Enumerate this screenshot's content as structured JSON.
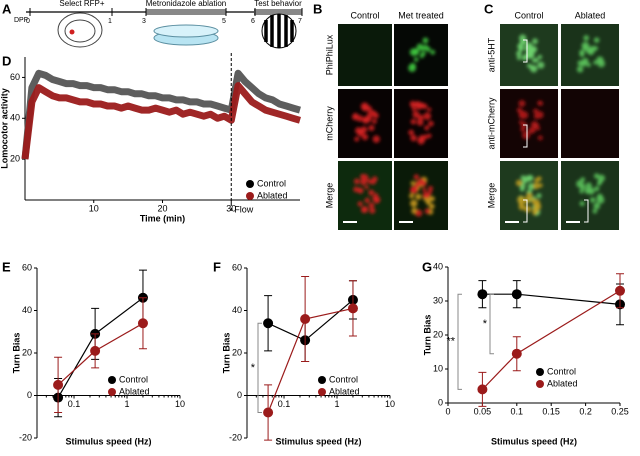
{
  "panel_labels": [
    "A",
    "B",
    "C",
    "D",
    "E",
    "F",
    "G"
  ],
  "panel_a": {
    "dpf_label": "DPF",
    "days": [
      "0",
      "1",
      "3",
      "5",
      "6",
      "7"
    ],
    "steps": [
      "Select  RFP+",
      "Metronidazole ablation",
      "Test behavior"
    ]
  },
  "panel_b": {
    "columns": [
      "Control",
      "Met treated"
    ],
    "rows": [
      "PhiPhiLux",
      "mCherry",
      "Merge"
    ]
  },
  "panel_c": {
    "columns": [
      "Control",
      "Ablated"
    ],
    "rows": [
      "anti-5HT",
      "anti-mCherry",
      "Merge"
    ]
  },
  "chart_data": [
    {
      "type": "line",
      "xlabel": "Time (min)",
      "ylabel": "Lomocotor activity",
      "x": [
        0,
        1,
        2,
        3,
        4,
        5,
        6,
        7,
        8,
        9,
        10,
        11,
        12,
        13,
        14,
        15,
        16,
        17,
        18,
        19,
        20,
        21,
        22,
        23,
        24,
        25,
        26,
        27,
        28,
        29,
        30,
        31,
        32,
        33,
        34,
        35,
        36,
        37,
        38,
        39,
        40
      ],
      "xlim": [
        0,
        40
      ],
      "ylim": [
        0,
        70
      ],
      "xticks": [
        10,
        20,
        30
      ],
      "yticks": [
        20,
        40,
        60
      ],
      "series": [
        {
          "name": "Control",
          "color": "#555555",
          "marker_color": "#000000",
          "values": [
            20,
            55,
            62,
            61,
            59,
            58,
            57,
            57,
            56,
            56,
            55,
            55,
            54,
            54,
            53,
            53,
            52,
            52,
            51,
            51,
            50,
            50,
            49,
            49,
            48,
            48,
            47,
            47,
            46,
            45,
            44,
            62,
            58,
            55,
            52,
            50,
            49,
            47,
            46,
            45,
            44
          ]
        },
        {
          "name": "Ablated",
          "color": "#9b1b1b",
          "marker_color": "#9b1b1b",
          "values": [
            20,
            48,
            55,
            53,
            51,
            50,
            50,
            49,
            48,
            48,
            47,
            47,
            46,
            46,
            45,
            46,
            45,
            44,
            44,
            45,
            44,
            43,
            44,
            42,
            43,
            42,
            41,
            42,
            40,
            41,
            39,
            56,
            52,
            48,
            46,
            44,
            43,
            42,
            41,
            40,
            39
          ]
        }
      ],
      "annotations": [
        {
          "text": "Flow",
          "x": 30
        }
      ],
      "legend": "lower right"
    },
    {
      "type": "errorbar",
      "xlabel": "Stimulus speed (Hz)",
      "ylabel": "Turn Bias",
      "xscale": "log",
      "x": [
        0.05,
        0.25,
        2
      ],
      "xlim": [
        0.02,
        10
      ],
      "ylim": [
        -20,
        60
      ],
      "xticks": [
        0.1,
        1,
        10
      ],
      "yticks": [
        -20,
        0,
        20,
        40,
        60
      ],
      "series": [
        {
          "name": "Control",
          "color": "#000000",
          "values": [
            -1,
            29,
            46
          ],
          "errors": [
            9,
            12,
            13
          ]
        },
        {
          "name": "Ablated",
          "color": "#9b1b1b",
          "values": [
            5,
            21,
            34
          ],
          "errors": [
            13,
            8,
            12
          ]
        }
      ],
      "annotations": [],
      "legend": "lower right"
    },
    {
      "type": "errorbar",
      "xlabel": "Stimulus speed (Hz)",
      "ylabel": "Turn Bias",
      "xscale": "log",
      "x": [
        0.05,
        0.25,
        2
      ],
      "xlim": [
        0.02,
        10
      ],
      "ylim": [
        -20,
        60
      ],
      "xticks": [
        0.1,
        1,
        10
      ],
      "yticks": [
        -20,
        0,
        20,
        40,
        60
      ],
      "series": [
        {
          "name": "Control",
          "color": "#000000",
          "values": [
            34,
            26,
            45
          ],
          "errors": [
            13,
            10,
            9
          ]
        },
        {
          "name": "Ablated",
          "color": "#9b1b1b",
          "values": [
            -8,
            36,
            41
          ],
          "errors": [
            13,
            20,
            13
          ]
        }
      ],
      "annotations": [
        {
          "text": "*"
        }
      ],
      "legend": "lower right"
    },
    {
      "type": "errorbar",
      "xlabel": "Stimulus speed (Hz)",
      "ylabel": "Turn Bias",
      "xscale": "linear",
      "x": [
        0.05,
        0.1,
        0.25
      ],
      "xlim": [
        0,
        0.25
      ],
      "ylim": [
        0,
        40
      ],
      "xticks": [
        0,
        0.05,
        0.1,
        0.15,
        0.2,
        0.25
      ],
      "yticks": [
        0,
        10,
        20,
        30,
        40
      ],
      "series": [
        {
          "name": "Control",
          "color": "#000000",
          "values": [
            32,
            32,
            29
          ],
          "errors": [
            4,
            4,
            6
          ]
        },
        {
          "name": "Ablated",
          "color": "#9b1b1b",
          "values": [
            4,
            14.5,
            33
          ],
          "errors": [
            5,
            5,
            5
          ]
        }
      ],
      "annotations": [
        {
          "text": "**"
        },
        {
          "text": "*"
        }
      ],
      "legend": "lower right"
    }
  ]
}
